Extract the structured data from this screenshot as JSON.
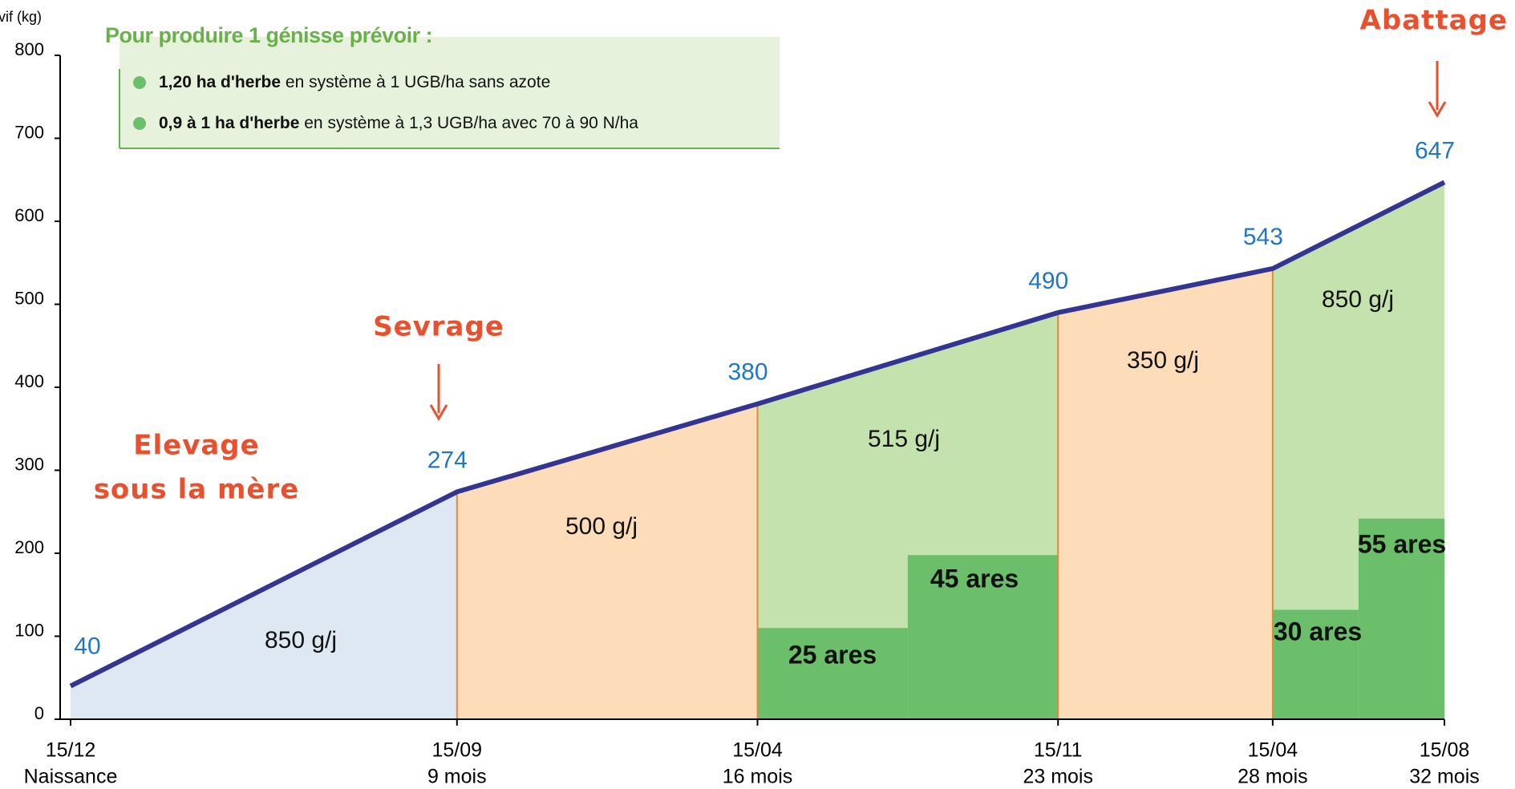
{
  "chart_data": {
    "type": "line",
    "y_axis_label": "s vif (kg)",
    "x": [
      0,
      9,
      16,
      23,
      28,
      32
    ],
    "xlim": [
      0,
      32
    ],
    "date_labels": [
      "15/12",
      "15/09",
      "15/04",
      "15/11",
      "15/04",
      "15/08"
    ],
    "age_labels": [
      "Naissance",
      "9 mois",
      "16 mois",
      "23 mois",
      "28 mois",
      "32 mois"
    ],
    "series": [
      {
        "name": "Poids vif",
        "color": "#343591",
        "values": [
          40,
          274,
          380,
          490,
          543,
          647
        ]
      }
    ],
    "ylim": [
      0,
      800
    ],
    "yticks": [
      0,
      100,
      200,
      300,
      400,
      500,
      600,
      700,
      800
    ],
    "value_label_color": "#1f78c1",
    "period_colors": [
      "#dde8f2",
      "#fdddb9",
      "#c3e2ad",
      "#fdddb9",
      "#c3e2ad"
    ],
    "growth_labels": [
      "850 g/j",
      "500 g/j",
      "515 g/j",
      "350 g/j",
      "850 g/j"
    ],
    "area_bars": {
      "color": "#6bbf6b",
      "values": [
        25,
        45,
        30,
        55
      ],
      "value_labels": [
        "25 ares",
        "45 ares",
        "30 ares",
        "55 ares"
      ],
      "x_ranges": [
        [
          16,
          19.5
        ],
        [
          19.5,
          23
        ],
        [
          28,
          30
        ],
        [
          30,
          32
        ]
      ],
      "y2lim": [
        0,
        182
      ]
    },
    "annotations": {
      "birth": [
        "Elevage",
        "sous la mère"
      ],
      "weaning": "Sevrage",
      "slaughter": "Abattage"
    },
    "info_box": {
      "title": "Pour produire 1 génisse prévoir :",
      "items": [
        {
          "bold": "1,20 ha d'herbe",
          "text": "en système à 1 UGB/ha sans azote"
        },
        {
          "bold": "0,9 à 1 ha d'herbe",
          "text": "en système à 1,3 UGB/ha avec 70 à 90 N/ha"
        }
      ]
    }
  }
}
